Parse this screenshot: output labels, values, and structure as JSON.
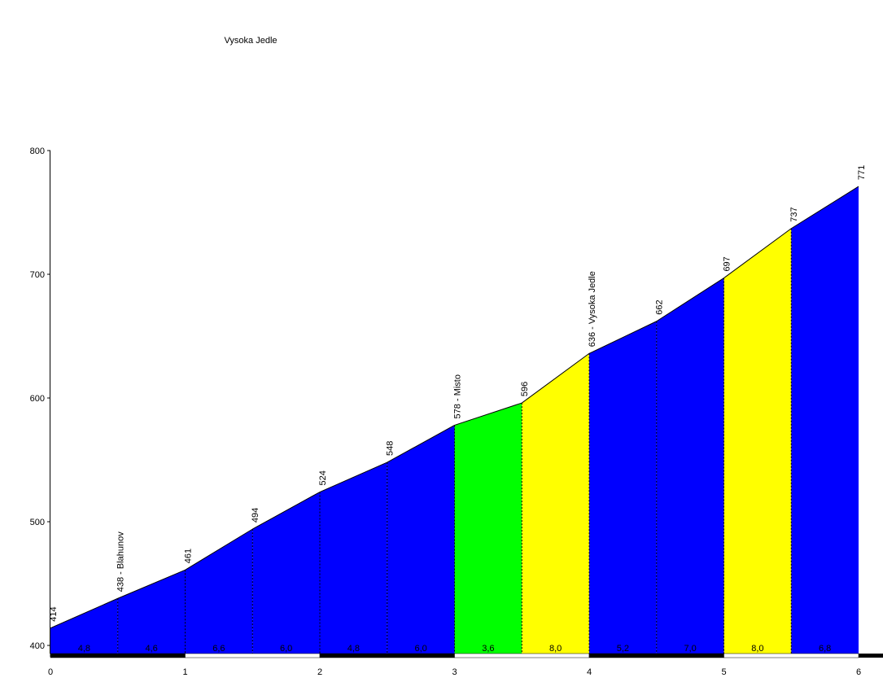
{
  "chart_data": {
    "type": "area",
    "title": "Vysoka Jedle",
    "x": [
      0,
      0.5,
      1,
      1.5,
      2,
      2.5,
      3,
      3.5,
      4,
      4.5,
      5,
      5.5,
      6
    ],
    "values": [
      414,
      438,
      461,
      494,
      524,
      548,
      578,
      596,
      636,
      662,
      697,
      737,
      771
    ],
    "value_labels": [
      "414",
      "438 - Blahunov",
      "461",
      "494",
      "524",
      "548",
      "578 - Misto",
      "596",
      "636 - Vysoka Jedle",
      "662",
      "697",
      "737",
      "771"
    ],
    "segments": {
      "values": [
        4.8,
        4.6,
        6.6,
        6.0,
        4.8,
        6.0,
        3.6,
        8.0,
        5.2,
        7.0,
        8.0,
        6.8
      ],
      "value_labels": [
        "4,8",
        "4,6",
        "6,6",
        "6,0",
        "4,8",
        "6,0",
        "3,6",
        "8,0",
        "5,2",
        "7,0",
        "8,0",
        "6,8"
      ],
      "colors": [
        "#0000ff",
        "#0000ff",
        "#0000ff",
        "#0000ff",
        "#0000ff",
        "#0000ff",
        "#00ff00",
        "#ffff00",
        "#0000ff",
        "#0000ff",
        "#ffff00",
        "#0000ff"
      ]
    },
    "xlim": [
      0,
      6
    ],
    "xticks": [
      0,
      1,
      2,
      3,
      4,
      5,
      6
    ],
    "ylim": [
      400,
      800
    ],
    "yticks": [
      400,
      500,
      600,
      700,
      800
    ]
  }
}
